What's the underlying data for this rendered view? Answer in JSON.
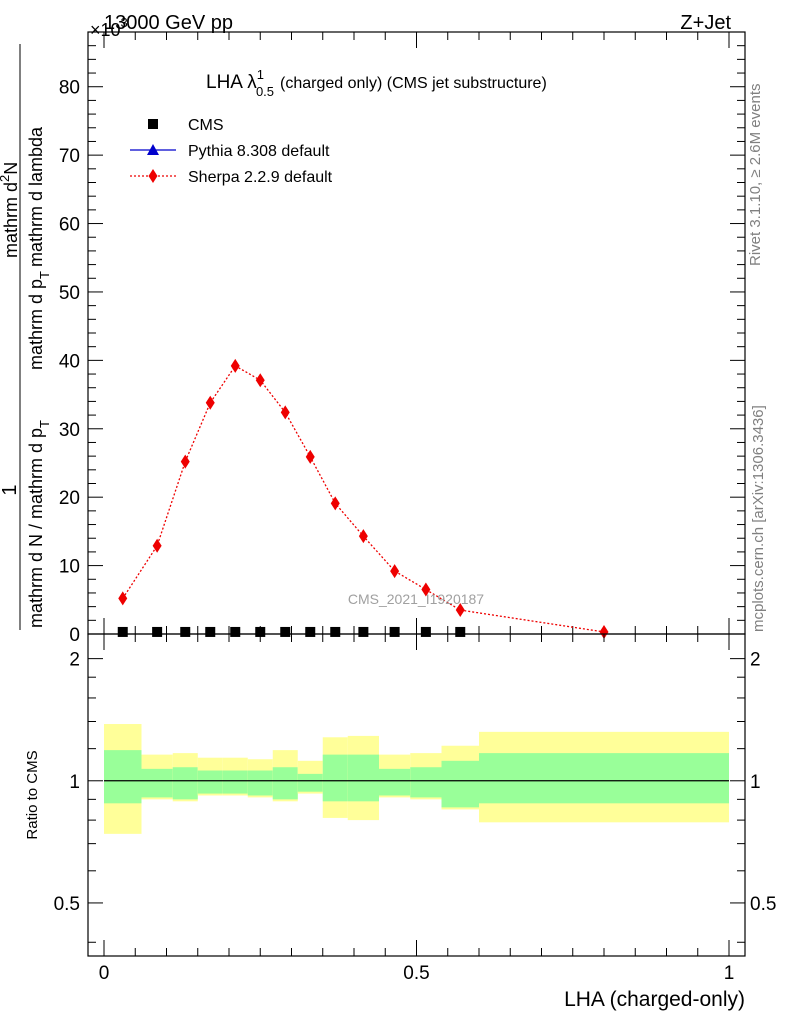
{
  "header": {
    "left": "13000 GeV pp",
    "right": "Z+Jet",
    "multiplier": "×10",
    "multiplier_exp": "3"
  },
  "side_labels": {
    "rivet": "Rivet 3.1.10, ≥ 2.6M events",
    "mcplots": "mcplots.cern.ch [arXiv:1306.3436]"
  },
  "watermark": "CMS_2021_I1920187",
  "chart_data": [
    {
      "type": "line",
      "title": "LHA λ",
      "title_sup": "1",
      "title_sub": "0.5",
      "title_suffix": "(charged only) (CMS jet substructure)",
      "ylabel_numerator": "1",
      "ylabel_denominator": "mathrm d N / mathrm d p",
      "ylabel_denominator_sub": "T",
      "ylabel_numerator2_line1": "mathrm d",
      "ylabel_numerator2_sup": "2",
      "ylabel_numerator2_line1_end": "N",
      "ylabel_denominator2": "mathrm d p",
      "ylabel_denominator2_sub": "T",
      "ylabel_denominator2_end": "mathrm d lambda",
      "xlim": [
        0,
        1
      ],
      "ylim": [
        0,
        88
      ],
      "yticks": [
        0,
        10,
        20,
        30,
        40,
        50,
        60,
        70,
        80
      ],
      "legend_placement": "top-left",
      "series": [
        {
          "name": "CMS",
          "color": "#000000",
          "marker": "square",
          "x": [
            0.03,
            0.085,
            0.13,
            0.17,
            0.21,
            0.25,
            0.29,
            0.33,
            0.37,
            0.415,
            0.465,
            0.515,
            0.57
          ],
          "y": [
            0.3,
            0.3,
            0.3,
            0.3,
            0.3,
            0.3,
            0.3,
            0.3,
            0.3,
            0.3,
            0.3,
            0.3,
            0.3
          ]
        },
        {
          "name": "Pythia 8.308 default",
          "color": "#0000cc",
          "marker": "triangle",
          "x": [],
          "y": []
        },
        {
          "name": "Sherpa 2.2.9 default",
          "color": "#ee0000",
          "marker": "diamond",
          "x": [
            0.03,
            0.085,
            0.13,
            0.17,
            0.21,
            0.25,
            0.29,
            0.33,
            0.37,
            0.415,
            0.465,
            0.515,
            0.57,
            0.8
          ],
          "y": [
            5.2,
            12.9,
            25.2,
            33.8,
            39.2,
            37.1,
            32.4,
            25.9,
            19.1,
            14.3,
            9.2,
            6.5,
            3.5,
            0.3
          ]
        }
      ]
    },
    {
      "type": "area",
      "ylabel": "Ratio to CMS",
      "xlabel": "LHA (charged-only)",
      "xlim": [
        0,
        1
      ],
      "ylim": [
        0.37,
        2.3
      ],
      "log_scale_y": true,
      "yticks": [
        0.5,
        1,
        2
      ],
      "xticks": [
        0,
        0.5,
        1
      ],
      "xtick_labels": [
        "0",
        "0.5",
        "1"
      ],
      "band_colors": {
        "inner": "#99ff99",
        "outer": "#ffff99"
      },
      "reference_line": 1,
      "bins": [
        {
          "x0": 0.0,
          "x1": 0.06,
          "inner": [
            0.88,
            1.19
          ],
          "outer": [
            0.74,
            1.38
          ]
        },
        {
          "x0": 0.06,
          "x1": 0.11,
          "inner": [
            0.91,
            1.07
          ],
          "outer": [
            0.9,
            1.16
          ]
        },
        {
          "x0": 0.11,
          "x1": 0.15,
          "inner": [
            0.9,
            1.08
          ],
          "outer": [
            0.89,
            1.17
          ]
        },
        {
          "x0": 0.15,
          "x1": 0.19,
          "inner": [
            0.93,
            1.06
          ],
          "outer": [
            0.92,
            1.14
          ]
        },
        {
          "x0": 0.19,
          "x1": 0.23,
          "inner": [
            0.93,
            1.06
          ],
          "outer": [
            0.92,
            1.14
          ]
        },
        {
          "x0": 0.23,
          "x1": 0.27,
          "inner": [
            0.92,
            1.06
          ],
          "outer": [
            0.91,
            1.13
          ]
        },
        {
          "x0": 0.27,
          "x1": 0.31,
          "inner": [
            0.9,
            1.08
          ],
          "outer": [
            0.89,
            1.19
          ]
        },
        {
          "x0": 0.31,
          "x1": 0.35,
          "inner": [
            0.94,
            1.04
          ],
          "outer": [
            0.93,
            1.12
          ]
        },
        {
          "x0": 0.35,
          "x1": 0.39,
          "inner": [
            0.89,
            1.16
          ],
          "outer": [
            0.81,
            1.28
          ]
        },
        {
          "x0": 0.39,
          "x1": 0.44,
          "inner": [
            0.89,
            1.16
          ],
          "outer": [
            0.8,
            1.29
          ]
        },
        {
          "x0": 0.44,
          "x1": 0.49,
          "inner": [
            0.92,
            1.07
          ],
          "outer": [
            0.91,
            1.16
          ]
        },
        {
          "x0": 0.49,
          "x1": 0.54,
          "inner": [
            0.91,
            1.08
          ],
          "outer": [
            0.9,
            1.17
          ]
        },
        {
          "x0": 0.54,
          "x1": 0.6,
          "inner": [
            0.86,
            1.12
          ],
          "outer": [
            0.85,
            1.22
          ]
        },
        {
          "x0": 0.6,
          "x1": 1.0,
          "inner": [
            0.88,
            1.17
          ],
          "outer": [
            0.79,
            1.32
          ]
        }
      ]
    }
  ]
}
